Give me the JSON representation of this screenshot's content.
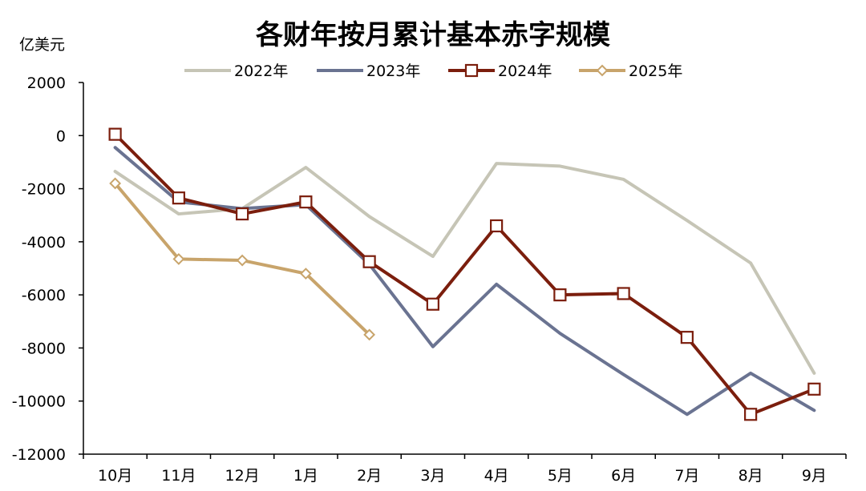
{
  "chart_data": {
    "type": "line",
    "title": "各财年按月累计基本赤字规模",
    "ylabel": "亿美元",
    "xlabel": "",
    "categories": [
      "10月",
      "11月",
      "12月",
      "1月",
      "2月",
      "3月",
      "4月",
      "5月",
      "6月",
      "7月",
      "8月",
      "9月"
    ],
    "ylim": [
      -12000,
      2000
    ],
    "yticks": [
      2000,
      0,
      -2000,
      -4000,
      -6000,
      -8000,
      -10000,
      -12000
    ],
    "ytick_labels": [
      "2000",
      "0",
      "-2000",
      "-4000",
      "-6000",
      "-8000",
      "-10000",
      "-12000"
    ],
    "grid": false,
    "legend_position": "top",
    "series": [
      {
        "name": "2022年",
        "color": "#c6c5b6",
        "marker": "none",
        "values": [
          -1350,
          -2950,
          -2750,
          -1200,
          -3050,
          -4550,
          -1050,
          -1150,
          -1650,
          -3200,
          -4800,
          -8950
        ]
      },
      {
        "name": "2023年",
        "color": "#6a7391",
        "marker": "none",
        "values": [
          -450,
          -2500,
          -2750,
          -2600,
          -4850,
          -7950,
          -5600,
          -7450,
          -9000,
          -10500,
          -8950,
          -10350
        ]
      },
      {
        "name": "2024年",
        "color": "#7b1e0d",
        "marker": "square",
        "values": [
          50,
          -2350,
          -2950,
          -2500,
          -4750,
          -6350,
          -3400,
          -6000,
          -5950,
          -7600,
          -10500,
          -9550
        ]
      },
      {
        "name": "2025年",
        "color": "#c8a46b",
        "marker": "diamond",
        "values": [
          -1800,
          -4650,
          -4700,
          -5200,
          -7500,
          null,
          null,
          null,
          null,
          null,
          null,
          null
        ]
      }
    ]
  }
}
